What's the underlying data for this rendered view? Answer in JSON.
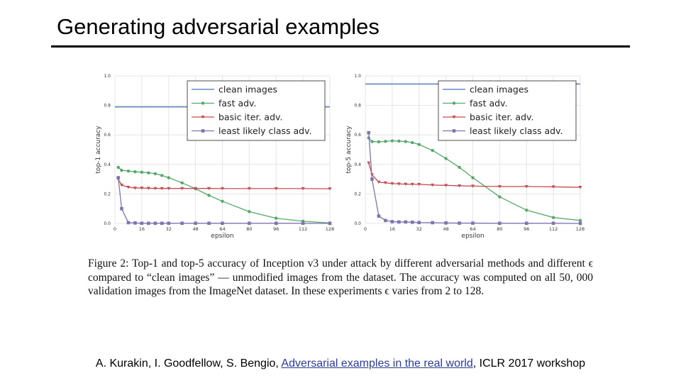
{
  "slide": {
    "title": "Generating adversarial examples"
  },
  "caption": "Figure 2: Top-1 and top-5 accuracy of Inception v3 under attack by different adversarial methods and different ϵ compared to “clean images” — unmodified images from the dataset. The accuracy was computed on all 50, 000 validation images from the ImageNet dataset. In these experiments ϵ varies from 2 to 128.",
  "citation": {
    "authors": "A. Kurakin, I. Goodfellow, S. Bengio, ",
    "link_text": "Adversarial examples in the real world",
    "venue": ", ICLR 2017 workshop"
  },
  "chart_data": [
    {
      "type": "line",
      "xlabel": "epsilon",
      "ylabel": "top-1 accuracy",
      "xlim": [
        0,
        128
      ],
      "ylim": [
        0,
        1.0
      ],
      "xticks": [
        "0",
        "16",
        "32",
        "48",
        "64",
        "80",
        "96",
        "112",
        "128"
      ],
      "yticks": [
        "0.0",
        "0.2",
        "0.4",
        "0.6",
        "0.8",
        "1.0"
      ],
      "grid": true,
      "legend": "top-right",
      "x": [
        2,
        4,
        8,
        12,
        16,
        20,
        24,
        28,
        32,
        40,
        48,
        56,
        64,
        80,
        96,
        112,
        128
      ],
      "series": [
        {
          "name": "clean images",
          "color": "#4c72b0",
          "marker": "none",
          "values": [
            0.79,
            0.79,
            0.79,
            0.79,
            0.79,
            0.79,
            0.79,
            0.79,
            0.79,
            0.79,
            0.79,
            0.79,
            0.79,
            0.79,
            0.79,
            0.79,
            0.79
          ]
        },
        {
          "name": "fast adv.",
          "color": "#55a868",
          "marker": "circle",
          "values": [
            0.38,
            0.36,
            0.355,
            0.35,
            0.347,
            0.343,
            0.337,
            0.325,
            0.31,
            0.275,
            0.235,
            0.19,
            0.15,
            0.08,
            0.035,
            0.015,
            0.003
          ]
        },
        {
          "name": "basic iter. adv.",
          "color": "#c44e52",
          "marker": "triangle-down",
          "values": [
            0.3,
            0.26,
            0.245,
            0.24,
            0.24,
            0.238,
            0.237,
            0.237,
            0.237,
            0.237,
            0.237,
            0.237,
            0.236,
            0.236,
            0.236,
            0.236,
            0.235
          ]
        },
        {
          "name": "least likely class adv.",
          "color": "#8172b2",
          "marker": "square",
          "values": [
            0.31,
            0.1,
            0.005,
            0.003,
            0.001,
            0.001,
            0.001,
            0.001,
            0.001,
            0.001,
            0.001,
            0.001,
            0.001,
            0.001,
            0.001,
            0.001,
            0.0
          ]
        }
      ]
    },
    {
      "type": "line",
      "xlabel": "epsilon",
      "ylabel": "top-5 accuracy",
      "xlim": [
        0,
        128
      ],
      "ylim": [
        0,
        1.0
      ],
      "xticks": [
        "0",
        "16",
        "32",
        "48",
        "64",
        "80",
        "96",
        "112",
        "128"
      ],
      "yticks": [
        "0.0",
        "0.2",
        "0.4",
        "0.6",
        "0.8",
        "1.0"
      ],
      "grid": true,
      "legend": "top-right",
      "x": [
        2,
        4,
        8,
        12,
        16,
        20,
        24,
        28,
        32,
        40,
        48,
        56,
        64,
        80,
        96,
        112,
        128
      ],
      "series": [
        {
          "name": "clean images",
          "color": "#4c72b0",
          "marker": "none",
          "values": [
            0.945,
            0.945,
            0.945,
            0.945,
            0.945,
            0.945,
            0.945,
            0.945,
            0.945,
            0.945,
            0.945,
            0.945,
            0.945,
            0.945,
            0.945,
            0.945,
            0.945
          ]
        },
        {
          "name": "fast adv.",
          "color": "#55a868",
          "marker": "circle",
          "values": [
            0.58,
            0.555,
            0.553,
            0.556,
            0.56,
            0.558,
            0.555,
            0.548,
            0.535,
            0.495,
            0.44,
            0.38,
            0.31,
            0.18,
            0.09,
            0.04,
            0.02
          ]
        },
        {
          "name": "basic iter. adv.",
          "color": "#c44e52",
          "marker": "triangle-down",
          "values": [
            0.41,
            0.33,
            0.28,
            0.275,
            0.27,
            0.268,
            0.266,
            0.265,
            0.265,
            0.26,
            0.258,
            0.255,
            0.253,
            0.25,
            0.25,
            0.248,
            0.245
          ]
        },
        {
          "name": "least likely class adv.",
          "color": "#8172b2",
          "marker": "square",
          "values": [
            0.615,
            0.3,
            0.05,
            0.02,
            0.012,
            0.01,
            0.01,
            0.008,
            0.006,
            0.005,
            0.003,
            0.002,
            0.002,
            0.001,
            0.001,
            0.001,
            0.0
          ]
        }
      ]
    }
  ]
}
